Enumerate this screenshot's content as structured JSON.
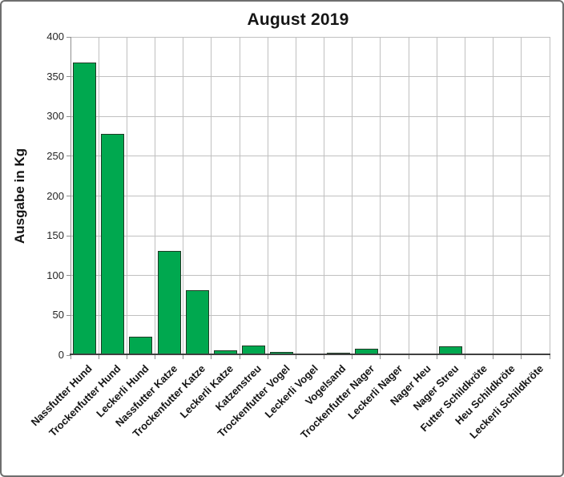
{
  "window": {
    "background": "#ffffff",
    "border_color": "#6e6e6e"
  },
  "chart_data": {
    "type": "bar",
    "title": "August 2019",
    "xlabel": "",
    "ylabel": "Ausgabe in Kg",
    "ylim": [
      0,
      400
    ],
    "y_tick_step": 50,
    "y_ticks": [
      0,
      50,
      100,
      150,
      200,
      250,
      300,
      350,
      400
    ],
    "grid": true,
    "legend": "none",
    "categories": [
      "Nassfutter Hund",
      "Trockenfutter Hund",
      "Leckerli Hund",
      "Nassfutter Katze",
      "Trockenfutter Katze",
      "Leckerli Katze",
      "Katzenstreu",
      "Trockenfutter Vogel",
      "Leckerli Vogel",
      "Vogelsand",
      "Trockenfutter Nager",
      "Leckerli Nager",
      "Nager Heu",
      "Nager Streu",
      "Futter Schildkröte",
      "Heu Schildkröte",
      "Leckerli Schildkröte"
    ],
    "values": [
      368,
      278,
      23,
      131,
      82,
      6,
      12,
      4,
      0,
      3,
      8,
      2,
      0,
      11,
      0,
      0,
      0
    ],
    "bar_fill": "#00a84f",
    "bar_border": "#1f3b26",
    "gridline_color": "#c0c0c0",
    "axis_color": "#404040",
    "tick_color": "#8f8f8f",
    "text_color": "#151515"
  }
}
